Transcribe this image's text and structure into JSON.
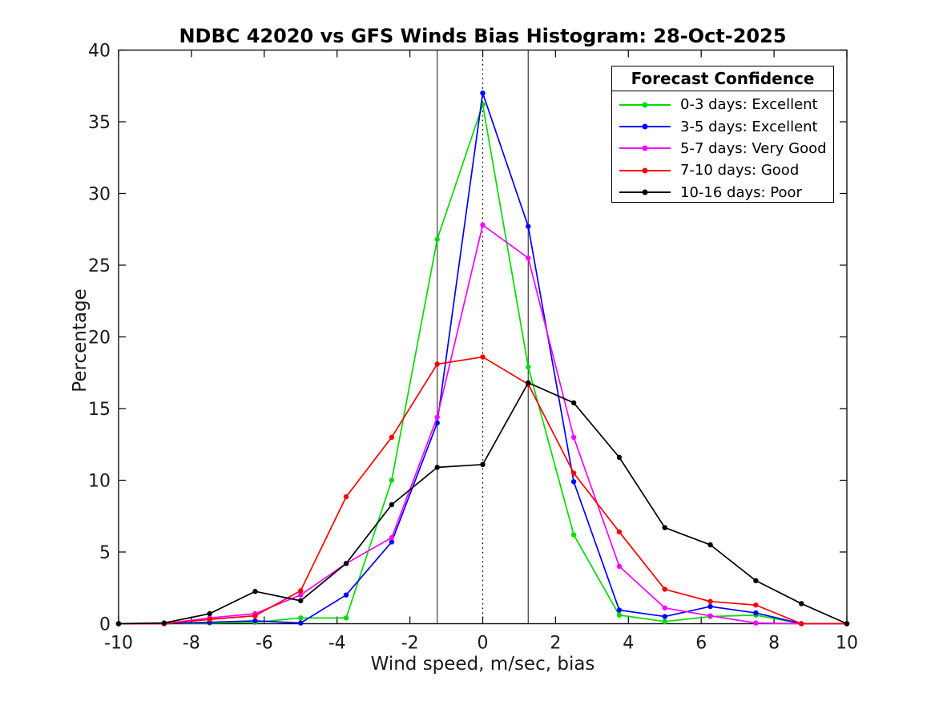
{
  "figure": {
    "title": "NDBC 42020 vs GFS Winds Bias Histogram: 28-Oct-2025",
    "xlabel": "Wind speed, m/sec, bias",
    "ylabel": "Percentage",
    "background": "#ffffff"
  },
  "legend": {
    "title": "Forecast Confidence",
    "position": "top-right",
    "entries": [
      {
        "label": "0-3 days: Excellent",
        "color": "#00dd00"
      },
      {
        "label": "3-5 days: Excellent",
        "color": "#0000ff"
      },
      {
        "label": "5-7 days: Very Good",
        "color": "#ff00ff"
      },
      {
        "label": "7-10 days: Good",
        "color": "#ff0000"
      },
      {
        "label": "10-16 days: Poor",
        "color": "#000000"
      }
    ]
  },
  "chart_data": {
    "type": "line",
    "title": "NDBC 42020 vs GFS Winds Bias Histogram: 28-Oct-2025",
    "xlabel": "Wind speed, m/sec, bias",
    "ylabel": "Percentage",
    "xlim": [
      -10,
      10
    ],
    "ylim": [
      0,
      40
    ],
    "xticks": [
      -10,
      -8,
      -6,
      -4,
      -2,
      0,
      2,
      4,
      6,
      8,
      10
    ],
    "yticks": [
      0,
      5,
      10,
      15,
      20,
      25,
      30,
      35,
      40
    ],
    "grid": false,
    "legend_position": "top-right",
    "x": [
      -10,
      -8.75,
      -7.5,
      -6.25,
      -5,
      -3.75,
      -2.5,
      -1.25,
      0,
      1.25,
      2.5,
      3.75,
      5,
      6.25,
      7.5,
      8.75,
      10
    ],
    "series": [
      {
        "name": "0-3 days: Excellent",
        "color": "#00dd00",
        "values": [
          0,
          0,
          0.05,
          0.1,
          0.4,
          0.4,
          10.0,
          26.8,
          36.2,
          17.9,
          6.2,
          0.6,
          0.15,
          0.5,
          0.6,
          0,
          0
        ]
      },
      {
        "name": "3-5 days: Excellent",
        "color": "#0000ff",
        "values": [
          0,
          0,
          0.1,
          0.2,
          0.05,
          2.0,
          5.7,
          14.0,
          37.0,
          27.7,
          9.9,
          0.95,
          0.5,
          1.2,
          0.75,
          0,
          0
        ]
      },
      {
        "name": "5-7 days: Very Good",
        "color": "#ff00ff",
        "values": [
          0,
          0,
          0.4,
          0.7,
          2.0,
          4.2,
          6.0,
          14.4,
          27.8,
          25.5,
          13.0,
          4.0,
          1.1,
          0.55,
          0.05,
          0,
          0
        ]
      },
      {
        "name": "7-10 days: Good",
        "color": "#ff0000",
        "values": [
          0,
          0,
          0.3,
          0.55,
          2.3,
          8.85,
          13.0,
          18.1,
          18.6,
          16.7,
          10.5,
          6.4,
          2.4,
          1.55,
          1.3,
          0,
          0
        ]
      },
      {
        "name": "10-16 days: Poor",
        "color": "#000000",
        "values": [
          0,
          0.05,
          0.7,
          2.25,
          1.6,
          4.2,
          8.3,
          10.9,
          11.1,
          16.8,
          15.4,
          11.6,
          6.7,
          5.5,
          3.0,
          1.4,
          0
        ]
      }
    ],
    "reference_lines": [
      {
        "x": -1.25,
        "style": "solid",
        "color": "#555555"
      },
      {
        "x": 0,
        "style": "dotted",
        "color": "#000000"
      },
      {
        "x": 1.25,
        "style": "solid",
        "color": "#555555"
      }
    ]
  }
}
